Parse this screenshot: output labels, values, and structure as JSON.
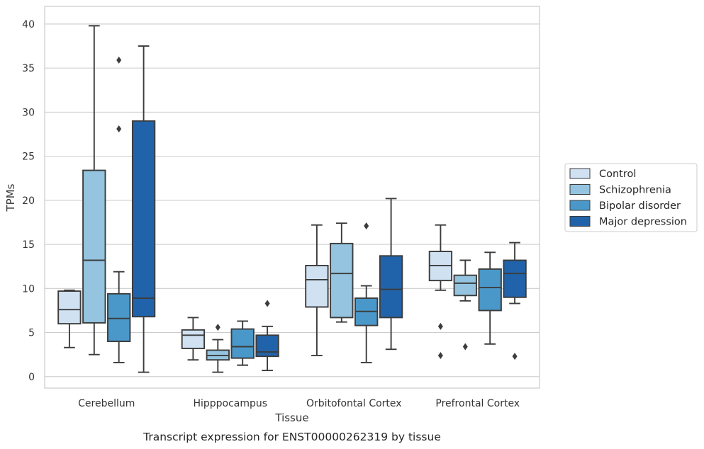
{
  "chart_data": {
    "type": "box",
    "xlabel": "Tissue",
    "ylabel": "TPMs",
    "caption": "Transcript expression for ENST00000262319 by tissue",
    "ylim": [
      -1.3,
      42
    ],
    "yticks": [
      0,
      5,
      10,
      15,
      20,
      25,
      30,
      35,
      40
    ],
    "grid": "horizontal",
    "legend_position": "right",
    "categories": [
      "Cerebellum",
      "Hipppocampus",
      "Orbitofontal Cortex",
      "Prefrontal Cortex"
    ],
    "series": [
      {
        "name": "Control",
        "color": "#d0e1f2",
        "boxes": [
          {
            "whislo": 3.3,
            "q1": 6.0,
            "med": 7.6,
            "q3": 9.7,
            "whishi": 9.8,
            "fliers": []
          },
          {
            "whislo": 1.9,
            "q1": 3.2,
            "med": 4.7,
            "q3": 5.3,
            "whishi": 6.7,
            "fliers": []
          },
          {
            "whislo": 2.4,
            "q1": 7.9,
            "med": 11.0,
            "q3": 12.6,
            "whishi": 17.2,
            "fliers": []
          },
          {
            "whislo": 9.8,
            "q1": 10.9,
            "med": 12.6,
            "q3": 14.2,
            "whishi": 17.2,
            "fliers": [
              5.7,
              2.4
            ]
          }
        ]
      },
      {
        "name": "Schizophrenia",
        "color": "#94c4df",
        "boxes": [
          {
            "whislo": 2.5,
            "q1": 6.1,
            "med": 13.2,
            "q3": 23.4,
            "whishi": 39.8,
            "fliers": []
          },
          {
            "whislo": 0.5,
            "q1": 1.9,
            "med": 2.4,
            "q3": 3.0,
            "whishi": 4.2,
            "fliers": [
              5.6
            ]
          },
          {
            "whislo": 6.2,
            "q1": 6.7,
            "med": 11.7,
            "q3": 15.1,
            "whishi": 17.4,
            "fliers": []
          },
          {
            "whislo": 8.6,
            "q1": 9.2,
            "med": 10.6,
            "q3": 11.5,
            "whishi": 13.2,
            "fliers": [
              3.4
            ]
          }
        ]
      },
      {
        "name": "Bipolar disorder",
        "color": "#4a98c9",
        "boxes": [
          {
            "whislo": 1.6,
            "q1": 4.0,
            "med": 6.6,
            "q3": 9.4,
            "whishi": 11.9,
            "fliers": [
              35.9,
              28.1
            ]
          },
          {
            "whislo": 1.3,
            "q1": 2.1,
            "med": 3.4,
            "q3": 5.4,
            "whishi": 6.3,
            "fliers": []
          },
          {
            "whislo": 1.6,
            "q1": 5.8,
            "med": 7.4,
            "q3": 8.9,
            "whishi": 10.3,
            "fliers": [
              17.1
            ]
          },
          {
            "whislo": 3.7,
            "q1": 7.5,
            "med": 10.1,
            "q3": 12.2,
            "whishi": 14.1,
            "fliers": []
          }
        ]
      },
      {
        "name": "Major depression",
        "color": "#2163aa",
        "boxes": [
          {
            "whislo": 0.5,
            "q1": 6.8,
            "med": 8.9,
            "q3": 29.0,
            "whishi": 37.5,
            "fliers": []
          },
          {
            "whislo": 0.7,
            "q1": 2.3,
            "med": 2.8,
            "q3": 4.7,
            "whishi": 5.7,
            "fliers": [
              8.3
            ]
          },
          {
            "whislo": 3.1,
            "q1": 6.7,
            "med": 9.9,
            "q3": 13.7,
            "whishi": 20.2,
            "fliers": []
          },
          {
            "whislo": 8.3,
            "q1": 9.0,
            "med": 11.7,
            "q3": 13.2,
            "whishi": 15.2,
            "fliers": [
              2.3
            ]
          }
        ]
      }
    ]
  }
}
